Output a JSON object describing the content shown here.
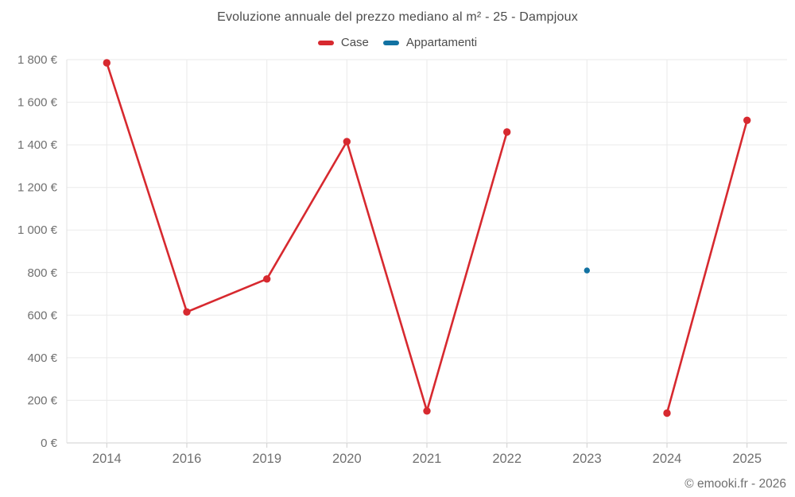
{
  "header": {
    "title": "Evoluzione annuale del prezzo mediano al m² - 25 - Dampjoux"
  },
  "legend": {
    "items": [
      {
        "label": "Case",
        "color": "#d7292f"
      },
      {
        "label": "Appartamenti",
        "color": "#1272a2"
      }
    ]
  },
  "footer": {
    "copyright": "© emooki.fr - 2026"
  },
  "chart_data": {
    "type": "line",
    "title": "Evoluzione annuale del prezzo mediano al m² - 25 - Dampjoux",
    "x": [
      "2014",
      "2016",
      "2019",
      "2020",
      "2021",
      "2022",
      "2023",
      "2024",
      "2025"
    ],
    "series": [
      {
        "name": "Case",
        "color": "#d7292f",
        "point_radius": 4.7,
        "line_width": 2.6,
        "values": [
          1785,
          615,
          770,
          1415,
          150,
          1460,
          null,
          140,
          1515
        ]
      },
      {
        "name": "Appartamenti",
        "color": "#1272a2",
        "point_radius": 3.7,
        "line_width": 2.6,
        "values": [
          null,
          null,
          null,
          null,
          null,
          null,
          810,
          null,
          null
        ]
      }
    ],
    "xlabel": "",
    "ylabel": "",
    "ylim": [
      0,
      1800
    ],
    "y_tick_step": 200,
    "y_tick_suffix": " €",
    "grid": true,
    "legend_position": "top",
    "colors": {
      "gridline": "#eaeaea",
      "axis_line": "#cfcfcf",
      "left_axis_line": "#e2e2e2",
      "tick_text": "#707070",
      "title_text": "#4c4c4c"
    }
  }
}
